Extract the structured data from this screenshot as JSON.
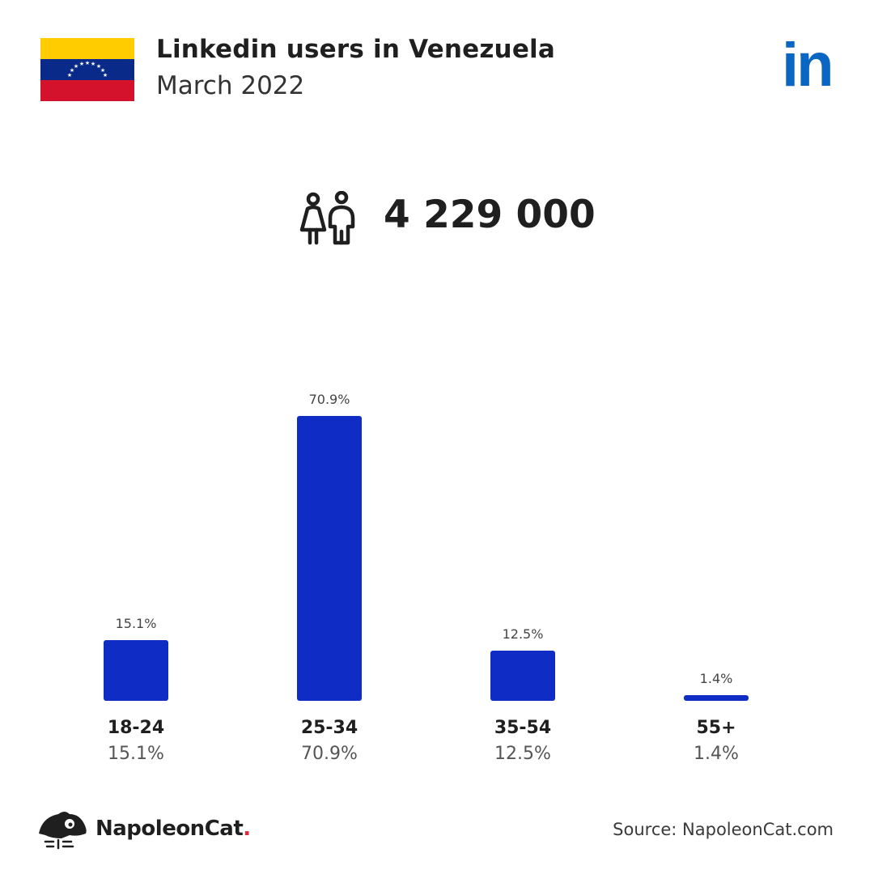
{
  "header": {
    "title": "Linkedin users in Venezuela",
    "subtitle": "March 2022",
    "brand_logo_text": "in",
    "flag_icon": "venezuela-flag-icon"
  },
  "summary": {
    "icon": "users-icon",
    "total_users": "4 229 000"
  },
  "colors": {
    "bar": "#0f2cc4",
    "linkedin_blue": "#0a66c2",
    "flag_yellow": "#ffcc00",
    "flag_blue": "#0a2a8a",
    "flag_red": "#d4122c",
    "accent_red": "#e0283a"
  },
  "chart_data": {
    "type": "bar",
    "categories": [
      "18-24",
      "25-34",
      "35-54",
      "55+"
    ],
    "values": [
      15.1,
      70.9,
      12.5,
      1.4
    ],
    "value_labels": [
      "15.1%",
      "70.9%",
      "12.5%",
      "1.4%"
    ],
    "unit": "%",
    "ylim": [
      0,
      70.9
    ],
    "grid": false,
    "legend": "none"
  },
  "footer": {
    "brand_name": "NapoleonCat",
    "brand_dot": ".",
    "source": "Source: NapoleonCat.com"
  }
}
